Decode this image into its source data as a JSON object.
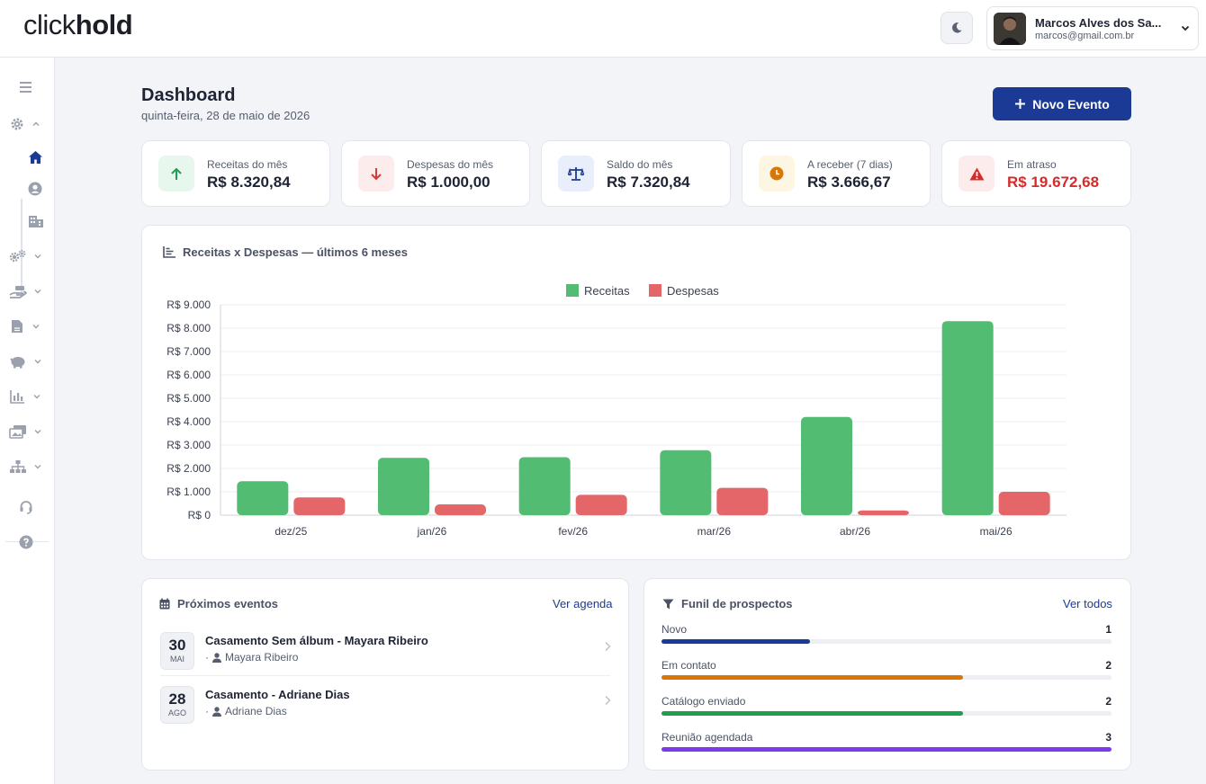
{
  "app": {
    "logo_part1": "click",
    "logo_part2": "hold"
  },
  "user": {
    "name": "Marcos Alves dos Sa...",
    "email": "marcos@gmail.com.br"
  },
  "sidebar": {
    "icons": [
      "menu-icon",
      "gear-icon",
      "chevron-up-icon",
      "home-icon",
      "user-circle-icon",
      "building-icon",
      "gears-icon",
      "hand-money-icon",
      "file-invoice-icon",
      "piggy-bank-icon",
      "bar-chart-icon",
      "images-icon",
      "sitemap-icon",
      "headset-icon",
      "help-icon"
    ]
  },
  "header": {
    "title": "Dashboard",
    "date": "quinta-feira, 28 de maio de 2026",
    "new_event_label": "Novo Evento"
  },
  "stats": [
    {
      "label": "Receitas do mês",
      "value": "R$ 8.320,84",
      "icon": "arrow-up-icon",
      "color": "#1f9d50",
      "bg": "#e8f7ee"
    },
    {
      "label": "Despesas do mês",
      "value": "R$ 1.000,00",
      "icon": "arrow-down-icon",
      "color": "#d63a3a",
      "bg": "#fcecec"
    },
    {
      "label": "Saldo do mês",
      "value": "R$ 7.320,84",
      "icon": "balance-scale-icon",
      "color": "#1a3a96",
      "bg": "#e9eefb"
    },
    {
      "label": "A receber (7 dias)",
      "value": "R$ 3.666,67",
      "icon": "clock-icon",
      "color": "#d97706",
      "bg": "#fdf6e3"
    },
    {
      "label": "Em atraso",
      "value": "R$ 19.672,68",
      "icon": "warning-icon",
      "color": "#d62b2b",
      "bg": "#fcecec"
    }
  ],
  "chart_card": {
    "title": "Receitas x Despesas — últimos 6 meses"
  },
  "chart_data": {
    "type": "bar",
    "title": "Receitas x Despesas — últimos 6 meses",
    "categories": [
      "dez/25",
      "jan/26",
      "fev/26",
      "mar/26",
      "abr/26",
      "mai/26"
    ],
    "series": [
      {
        "name": "Receitas",
        "color": "#52bc72",
        "values": [
          1450,
          2450,
          2480,
          2780,
          4200,
          8300
        ]
      },
      {
        "name": "Despesas",
        "color": "#e46668",
        "values": [
          760,
          460,
          870,
          1170,
          200,
          1000
        ]
      }
    ],
    "ylim": [
      0,
      9000
    ],
    "yticks": [
      "R$ 0",
      "R$ 1.000",
      "R$ 2.000",
      "R$ 3.000",
      "R$ 4.000",
      "R$ 5.000",
      "R$ 6.000",
      "R$ 7.000",
      "R$ 8.000",
      "R$ 9.000"
    ],
    "legend": "top-center",
    "grid": true,
    "xlabel": "",
    "ylabel": ""
  },
  "events_card": {
    "title": "Próximos eventos",
    "link": "Ver agenda",
    "events": [
      {
        "day": "30",
        "month": "MAI",
        "title": "Casamento Sem álbum - Mayara Ribeiro",
        "prefix": "·",
        "client": "Mayara Ribeiro"
      },
      {
        "day": "28",
        "month": "AGO",
        "title": "Casamento - Adriane Dias",
        "prefix": "·",
        "client": "Adriane Dias"
      }
    ]
  },
  "funnel_card": {
    "title": "Funil de prospectos",
    "link": "Ver todos",
    "stages": [
      {
        "label": "Novo",
        "count": "1",
        "fraction": 0.33,
        "color": "#1a3a96"
      },
      {
        "label": "Em contato",
        "count": "2",
        "fraction": 0.67,
        "color": "#d97706"
      },
      {
        "label": "Catálogo enviado",
        "count": "2",
        "fraction": 0.67,
        "color": "#1f9d50"
      },
      {
        "label": "Reunião agendada",
        "count": "3",
        "fraction": 1.0,
        "color": "#7c3aed"
      }
    ]
  }
}
